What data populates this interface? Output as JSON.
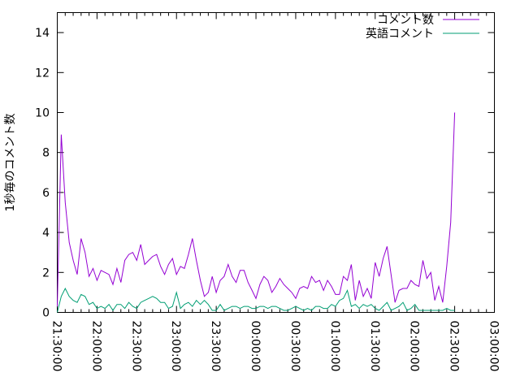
{
  "chart_data": {
    "type": "line",
    "title": "",
    "xlabel": "",
    "ylabel": "1秒毎のコメント数",
    "ylim": [
      0,
      15
    ],
    "xlim": [
      "21:30:00",
      "03:00:00"
    ],
    "yticks": [
      "0",
      "2",
      "4",
      "6",
      "8",
      "10",
      "12",
      "14"
    ],
    "xticks": [
      "21:30:00",
      "22:00:00",
      "22:30:00",
      "23:00:00",
      "23:30:00",
      "00:00:00",
      "00:30:00",
      "01:00:00",
      "01:30:00",
      "02:00:00",
      "02:30:00",
      "03:00:00"
    ],
    "grid": false,
    "legend_position": "top-right",
    "x": [
      "21:30",
      "21:33",
      "21:36",
      "21:39",
      "21:42",
      "21:45",
      "21:48",
      "21:51",
      "21:54",
      "21:57",
      "22:00",
      "22:03",
      "22:06",
      "22:09",
      "22:12",
      "22:15",
      "22:18",
      "22:21",
      "22:24",
      "22:27",
      "22:30",
      "22:33",
      "22:36",
      "22:39",
      "22:42",
      "22:45",
      "22:48",
      "22:51",
      "22:54",
      "22:57",
      "23:00",
      "23:03",
      "23:06",
      "23:09",
      "23:12",
      "23:15",
      "23:18",
      "23:21",
      "23:24",
      "23:27",
      "23:30",
      "23:33",
      "23:36",
      "23:39",
      "23:42",
      "23:45",
      "23:48",
      "23:51",
      "23:54",
      "23:57",
      "00:00",
      "00:03",
      "00:06",
      "00:09",
      "00:12",
      "00:15",
      "00:18",
      "00:21",
      "00:24",
      "00:27",
      "00:30",
      "00:33",
      "00:36",
      "00:39",
      "00:42",
      "00:45",
      "00:48",
      "00:51",
      "00:54",
      "00:57",
      "01:00",
      "01:03",
      "01:06",
      "01:09",
      "01:12",
      "01:15",
      "01:18",
      "01:21",
      "01:24",
      "01:27",
      "01:30",
      "01:33",
      "01:36",
      "01:39",
      "01:42",
      "01:45",
      "01:48",
      "01:51",
      "01:54",
      "01:57",
      "02:00",
      "02:03",
      "02:06",
      "02:09",
      "02:12",
      "02:15",
      "02:18",
      "02:21",
      "02:24",
      "02:27",
      "02:30"
    ],
    "series": [
      {
        "name": "コメント数",
        "color": "#9400d3",
        "values": [
          0.3,
          8.9,
          5.5,
          3.5,
          2.6,
          1.9,
          3.7,
          3.0,
          1.8,
          2.2,
          1.6,
          2.1,
          2.0,
          1.9,
          1.4,
          2.2,
          1.5,
          2.6,
          2.9,
          3.0,
          2.6,
          3.4,
          2.4,
          2.6,
          2.8,
          2.9,
          2.3,
          1.9,
          2.4,
          2.7,
          1.9,
          2.3,
          2.2,
          2.9,
          3.7,
          2.6,
          1.6,
          0.8,
          1.0,
          1.8,
          1.0,
          1.6,
          1.8,
          2.4,
          1.8,
          1.5,
          2.1,
          2.1,
          1.5,
          1.1,
          0.7,
          1.4,
          1.8,
          1.6,
          1.0,
          1.3,
          1.7,
          1.4,
          1.2,
          1.0,
          0.7,
          1.2,
          1.3,
          1.2,
          1.8,
          1.5,
          1.6,
          1.1,
          1.6,
          1.3,
          0.9,
          0.9,
          1.8,
          1.6,
          2.4,
          0.6,
          1.6,
          0.8,
          1.2,
          0.7,
          2.5,
          1.8,
          2.7,
          3.3,
          1.9,
          0.5,
          1.1,
          1.2,
          1.2,
          1.6,
          1.4,
          1.3,
          2.6,
          1.7,
          2.0,
          0.6,
          1.3,
          0.5,
          2.3,
          4.5,
          10.0
        ]
      },
      {
        "name": "英語コメント",
        "color": "#009e73",
        "values": [
          0,
          0.8,
          1.2,
          0.8,
          0.6,
          0.5,
          0.9,
          0.8,
          0.4,
          0.5,
          0.2,
          0.3,
          0.2,
          0.4,
          0.1,
          0.4,
          0.4,
          0.2,
          0.5,
          0.3,
          0.2,
          0.5,
          0.6,
          0.7,
          0.8,
          0.7,
          0.5,
          0.5,
          0.2,
          0.3,
          1.0,
          0.2,
          0.4,
          0.5,
          0.3,
          0.6,
          0.4,
          0.6,
          0.4,
          0.1,
          0.1,
          0.4,
          0.1,
          0.2,
          0.3,
          0.3,
          0.2,
          0.3,
          0.3,
          0.2,
          0.2,
          0.3,
          0.3,
          0.2,
          0.3,
          0.3,
          0.2,
          0.1,
          0.1,
          0.2,
          0.3,
          0.2,
          0.1,
          0.2,
          0.1,
          0.3,
          0.3,
          0.2,
          0.2,
          0.4,
          0.3,
          0.6,
          0.7,
          1.1,
          0.3,
          0.4,
          0.2,
          0.4,
          0.3,
          0.4,
          0.2,
          0.1,
          0.3,
          0.5,
          0.1,
          0.2,
          0.3,
          0.5,
          0.1,
          0.2,
          0.4,
          0.1,
          0.1,
          0.1,
          0.1,
          0.1,
          0.1,
          0.1,
          0.2,
          0.1,
          0.1
        ]
      }
    ]
  }
}
